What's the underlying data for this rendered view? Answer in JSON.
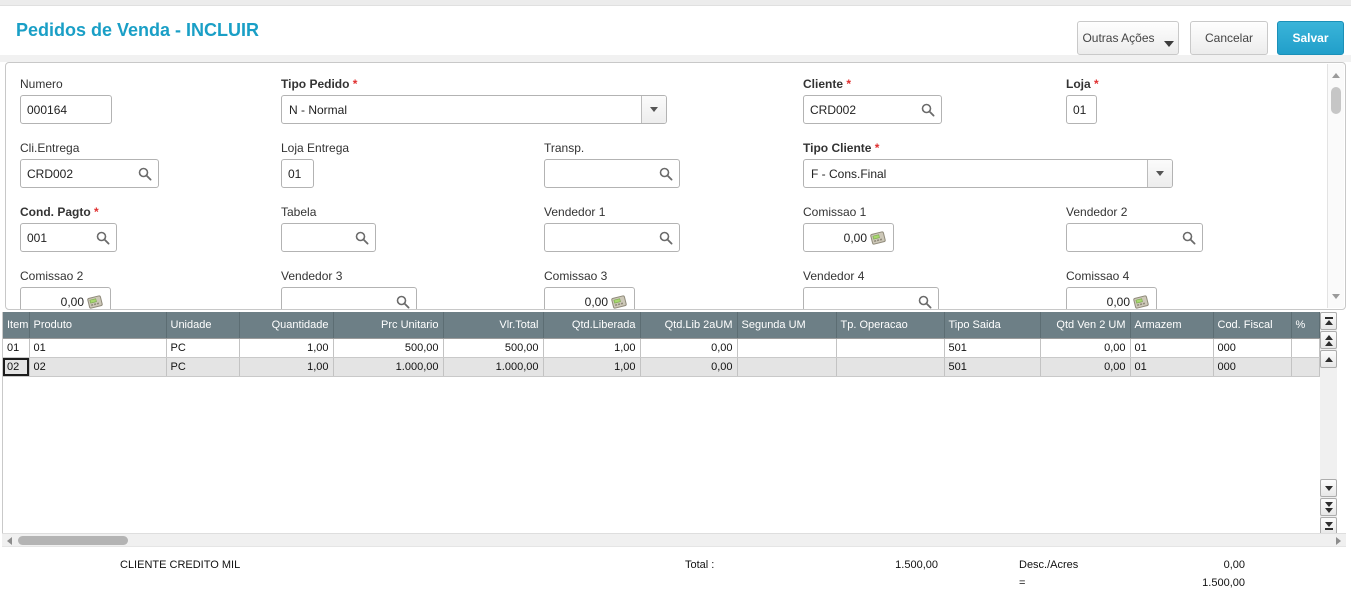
{
  "window": {
    "title": "Pedidos de Venda - INCLUIR"
  },
  "toolbar": {
    "outras_acoes_label": "Outras Ações",
    "cancelar_label": "Cancelar",
    "salvar_label": "Salvar"
  },
  "form": {
    "fields": [
      {
        "id": "numero",
        "label": "Numero",
        "required": false,
        "type": "text",
        "value": "000164"
      },
      {
        "id": "tipo_pedido",
        "label": "Tipo Pedido",
        "required": true,
        "type": "combo",
        "value": "N - Normal"
      },
      {
        "id": "cliente",
        "label": "Cliente",
        "required": true,
        "type": "lookup",
        "value": "CRD002"
      },
      {
        "id": "loja",
        "label": "Loja",
        "required": true,
        "type": "text",
        "value": "01"
      },
      {
        "id": "cli_entrega",
        "label": "Cli.Entrega",
        "required": false,
        "type": "lookup",
        "value": "CRD002"
      },
      {
        "id": "loja_entrega",
        "label": "Loja Entrega",
        "required": false,
        "type": "text",
        "value": "01"
      },
      {
        "id": "transp",
        "label": "Transp.",
        "required": false,
        "type": "lookup",
        "value": ""
      },
      {
        "id": "tipo_cliente",
        "label": "Tipo Cliente",
        "required": true,
        "type": "combo",
        "value": "F - Cons.Final"
      },
      {
        "id": "cond_pagto",
        "label": "Cond. Pagto",
        "required": true,
        "type": "lookup",
        "value": "001"
      },
      {
        "id": "tabela",
        "label": "Tabela",
        "required": false,
        "type": "lookup",
        "value": ""
      },
      {
        "id": "vendedor1",
        "label": "Vendedor 1",
        "required": false,
        "type": "lookup",
        "value": ""
      },
      {
        "id": "comissao1",
        "label": "Comissao 1",
        "required": false,
        "type": "money",
        "value": "0,00"
      },
      {
        "id": "vendedor2",
        "label": "Vendedor 2",
        "required": false,
        "type": "lookup",
        "value": ""
      },
      {
        "id": "comissao2",
        "label": "Comissao 2",
        "required": false,
        "type": "money",
        "value": "0,00"
      },
      {
        "id": "vendedor3",
        "label": "Vendedor 3",
        "required": false,
        "type": "lookup",
        "value": ""
      },
      {
        "id": "comissao3",
        "label": "Comissao 3",
        "required": false,
        "type": "money",
        "value": "0,00"
      },
      {
        "id": "vendedor4",
        "label": "Vendedor 4",
        "required": false,
        "type": "lookup",
        "value": ""
      },
      {
        "id": "comissao4",
        "label": "Comissao 4",
        "required": false,
        "type": "money",
        "value": "0,00"
      }
    ]
  },
  "grid": {
    "columns": [
      {
        "label": "Item",
        "align": "left"
      },
      {
        "label": "Produto",
        "align": "left"
      },
      {
        "label": "Unidade",
        "align": "left"
      },
      {
        "label": "Quantidade",
        "align": "right"
      },
      {
        "label": "Prc Unitario",
        "align": "right"
      },
      {
        "label": "Vlr.Total",
        "align": "right"
      },
      {
        "label": "Qtd.Liberada",
        "align": "right"
      },
      {
        "label": "Qtd.Lib 2aUM",
        "align": "right"
      },
      {
        "label": "Segunda UM",
        "align": "left"
      },
      {
        "label": "Tp. Operacao",
        "align": "left"
      },
      {
        "label": "Tipo Saida",
        "align": "left"
      },
      {
        "label": "Qtd Ven 2 UM",
        "align": "right"
      },
      {
        "label": "Armazem",
        "align": "left"
      },
      {
        "label": "Cod. Fiscal",
        "align": "left"
      },
      {
        "label": "%",
        "align": "left"
      }
    ],
    "rows": [
      {
        "selected": false,
        "cells": [
          "01",
          "01",
          "PC",
          "1,00",
          "500,00",
          "500,00",
          "1,00",
          "0,00",
          "",
          "",
          "501",
          "0,00",
          "01",
          "000",
          ""
        ]
      },
      {
        "selected": true,
        "cells": [
          "02",
          "02",
          "PC",
          "1,00",
          "1.000,00",
          "1.000,00",
          "1,00",
          "0,00",
          "",
          "",
          "501",
          "0,00",
          "01",
          "000",
          ""
        ]
      }
    ]
  },
  "footer": {
    "customer_name": "CLIENTE CREDITO MIL",
    "total_label": "Total :",
    "total_value": "1.500,00",
    "desc_label": "Desc./Acres",
    "desc_value": "0,00",
    "equals_label": "=",
    "net_value": "1.500,00"
  },
  "colors": {
    "accent_title": "#1a9fc6",
    "save_button": "#29abd3",
    "grid_header": "#6d7f86",
    "selected_row": "#e4e4e4",
    "required_asterisk": "#e03030"
  }
}
